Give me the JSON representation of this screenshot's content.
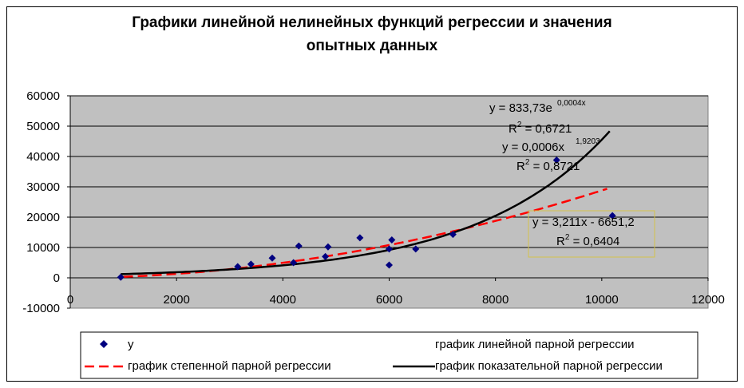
{
  "chart_data": {
    "type": "scatter",
    "title_lines": [
      "Графики линейной нелинейных функций регрессии и значения",
      "опытных данных"
    ],
    "xlim": [
      0,
      12000
    ],
    "ylim": [
      -10000,
      60000
    ],
    "x_ticks": [
      "0",
      "2000",
      "4000",
      "6000",
      "8000",
      "10000",
      "12000"
    ],
    "y_ticks": [
      "60000",
      "50000",
      "40000",
      "30000",
      "20000",
      "10000",
      "0",
      "-10000"
    ],
    "grid": "horizontal",
    "legend_position": "bottom",
    "colors": {
      "plot_bg": "#c0c0c0",
      "points": "#000080",
      "power": "#ff0000",
      "exp": "#000000",
      "box": "#d4c24a"
    },
    "points": [
      {
        "x": 950,
        "y": 200
      },
      {
        "x": 3150,
        "y": 3700
      },
      {
        "x": 3400,
        "y": 4500
      },
      {
        "x": 3800,
        "y": 6500
      },
      {
        "x": 4200,
        "y": 5000
      },
      {
        "x": 4300,
        "y": 10500
      },
      {
        "x": 4800,
        "y": 7000
      },
      {
        "x": 4850,
        "y": 10200
      },
      {
        "x": 5450,
        "y": 13200
      },
      {
        "x": 6000,
        "y": 4200
      },
      {
        "x": 6000,
        "y": 9500
      },
      {
        "x": 6050,
        "y": 12500
      },
      {
        "x": 6500,
        "y": 9500
      },
      {
        "x": 7200,
        "y": 14300
      },
      {
        "x": 9150,
        "y": 38800
      },
      {
        "x": 10200,
        "y": 20500
      }
    ],
    "power_fit": {
      "a": 0.0006,
      "b": 1.9203,
      "x_range": [
        1000,
        10100
      ]
    },
    "exp_fit": {
      "a": 833.73,
      "b": 0.0004,
      "x_range": [
        950,
        10150
      ]
    },
    "annotations": {
      "exp": {
        "main": "y = 833,73e",
        "exponent": "0,0004x",
        "r2_prefix": "R",
        "r2_sup": "2",
        "r2_val": " = 0,6721"
      },
      "power": {
        "main": "y = 0,0006x",
        "exponent": "1,9203",
        "r2_prefix": "R",
        "r2_sup": "2",
        "r2_val": " = 0,8721"
      },
      "linear": {
        "main": "y = 3,211x - 6651,2",
        "r2_prefix": "R",
        "r2_sup": "2",
        "r2_val": " = 0,6404"
      }
    },
    "legend": [
      {
        "label": "y",
        "kind": "marker"
      },
      {
        "label": "график линейной парной регрессии",
        "kind": "none"
      },
      {
        "label": "график степенной парной регрессии",
        "kind": "dashed"
      },
      {
        "label": "график показательной парной регрессии",
        "kind": "solid"
      }
    ]
  }
}
